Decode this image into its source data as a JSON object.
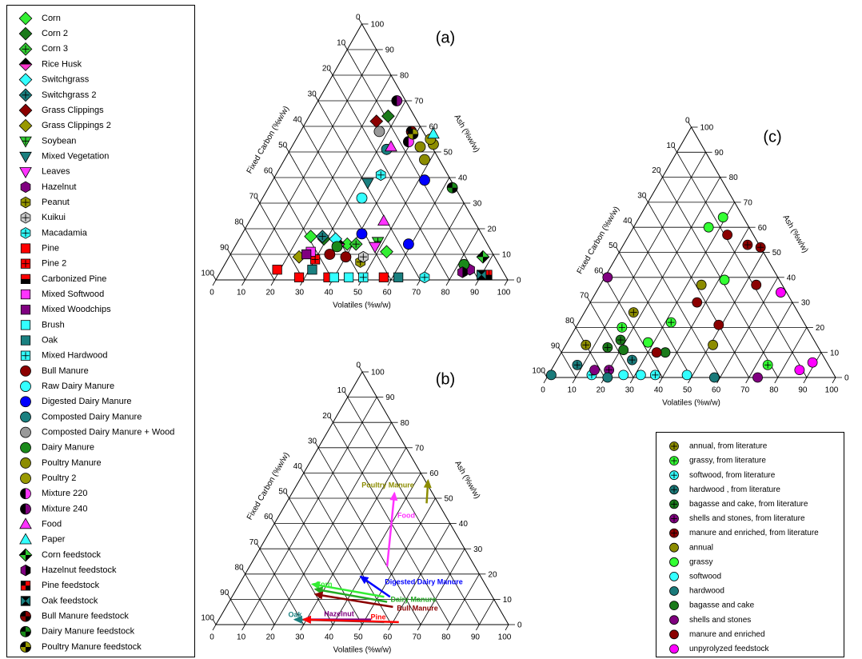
{
  "chart_data": [
    {
      "type": "ternary",
      "label": "(a)",
      "xlabel": "Volatiles (%w/w)",
      "left_label": "Fixed Carbon (%w/w)",
      "right_label": "Ash (%w/w)",
      "ticks": [
        0,
        10,
        20,
        30,
        40,
        50,
        60,
        70,
        80,
        90,
        100
      ],
      "grid": true,
      "legend": "left",
      "series": [
        {
          "name": "Corn",
          "color": "#33ee33",
          "marker": "diamond",
          "volatiles": [
            24,
            38,
            53
          ],
          "ash": [
            17,
            14,
            11
          ]
        },
        {
          "name": "Corn 2",
          "color": "#1a7a1a",
          "marker": "diamond",
          "volatiles": [
            27,
            29
          ],
          "ash": [
            64,
            16
          ]
        },
        {
          "name": "Corn 3",
          "color": "#33cc33",
          "marker": "diamond",
          "style": "plus",
          "volatiles": [
            41
          ],
          "ash": [
            14
          ]
        },
        {
          "name": "Rice Husk",
          "color": "#ff33cc",
          "color2": "#000000",
          "marker": "diamond",
          "style": "half-top",
          "volatiles": [
            35
          ],
          "ash": [
            14
          ]
        },
        {
          "name": "Switchgrass",
          "color": "#33ffff",
          "marker": "diamond",
          "volatiles": [
            33
          ],
          "ash": [
            16
          ]
        },
        {
          "name": "Switchgrass 2",
          "color": "#1a8080",
          "marker": "diamond",
          "style": "plus",
          "volatiles": [
            28
          ],
          "ash": [
            17
          ]
        },
        {
          "name": "Grass Clippings",
          "color": "#8b0000",
          "marker": "diamond",
          "volatiles": [
            24
          ],
          "ash": [
            62
          ]
        },
        {
          "name": "Grass Clippings 2",
          "color": "#999900",
          "marker": "diamond",
          "volatiles": [
            24
          ],
          "ash": [
            9
          ]
        },
        {
          "name": "Soybean",
          "color": "#33cc33",
          "marker": "tri-down",
          "style": "plus",
          "volatiles": [
            48
          ],
          "ash": [
            15
          ]
        },
        {
          "name": "Mixed Vegetation",
          "color": "#1a8080",
          "marker": "tri-down",
          "volatiles": [
            33
          ],
          "ash": [
            38
          ]
        },
        {
          "name": "Leaves",
          "color": "#ff33ff",
          "marker": "tri-down",
          "volatiles": [
            48
          ],
          "ash": [
            13
          ]
        },
        {
          "name": "Hazelnut",
          "color": "#800080",
          "marker": "hexagon",
          "volatiles": [
            85
          ],
          "ash": [
            4
          ]
        },
        {
          "name": "Peanut",
          "color": "#999900",
          "marker": "hexagon",
          "style": "plus",
          "volatiles": [
            46
          ],
          "ash": [
            7
          ]
        },
        {
          "name": "Kuikui",
          "color": "#cccccc",
          "marker": "hexagon",
          "style": "plus",
          "volatiles": [
            46
          ],
          "ash": [
            9
          ]
        },
        {
          "name": "Macadamia",
          "color": "#33ffff",
          "marker": "hexagon",
          "style": "plus",
          "volatiles": [
            36,
            71
          ],
          "ash": [
            41,
            1
          ]
        },
        {
          "name": "Pine",
          "color": "#ff0000",
          "marker": "square",
          "volatiles": [
            19,
            28,
            38,
            57
          ],
          "ash": [
            4,
            1,
            1,
            1
          ]
        },
        {
          "name": "Pine 2",
          "color": "#ff0000",
          "marker": "square",
          "style": "plus",
          "volatiles": [
            30
          ],
          "ash": [
            8
          ]
        },
        {
          "name": "Carbonized Pine",
          "color": "#ff0000",
          "color2": "#000000",
          "marker": "square",
          "style": "half-bottom",
          "volatiles": [
            92
          ],
          "ash": [
            2
          ]
        },
        {
          "name": "Mixed Softwood",
          "color": "#ff33ff",
          "marker": "square",
          "volatiles": [
            27
          ],
          "ash": [
            11
          ]
        },
        {
          "name": "Mixed Woodchips",
          "color": "#800080",
          "marker": "square",
          "volatiles": [
            26
          ],
          "ash": [
            10
          ]
        },
        {
          "name": "Brush",
          "color": "#33ffff",
          "marker": "square",
          "volatiles": [
            40,
            45
          ],
          "ash": [
            1,
            1
          ]
        },
        {
          "name": "Oak",
          "color": "#1a8080",
          "marker": "square",
          "volatiles": [
            31,
            62
          ],
          "ash": [
            4,
            1
          ]
        },
        {
          "name": "Mixed Hardwood",
          "color": "#33ffff",
          "marker": "square",
          "style": "plus",
          "volatiles": [
            50
          ],
          "ash": [
            1
          ]
        },
        {
          "name": "Bull Manure",
          "color": "#8b0000",
          "marker": "circle",
          "volatiles": [
            34,
            40
          ],
          "ash": [
            10,
            9
          ]
        },
        {
          "name": "Raw Dairy Manure",
          "color": "#33ffff",
          "marker": "circle",
          "volatiles": [
            34
          ],
          "ash": [
            32
          ]
        },
        {
          "name": "Digested Dairy Manure",
          "color": "#0000ff",
          "marker": "circle",
          "volatiles": [
            52,
            41,
            59
          ],
          "ash": [
            39,
            18,
            14
          ]
        },
        {
          "name": "Composted Dairy Manure",
          "color": "#1a8080",
          "marker": "circle",
          "volatiles": [
            33
          ],
          "ash": [
            51
          ]
        },
        {
          "name": "Composted Dairy Manure + Wood",
          "color": "#999999",
          "marker": "circle",
          "volatiles": [
            27
          ],
          "ash": [
            58
          ]
        },
        {
          "name": "Dairy Manure",
          "color": "#1a8a1a",
          "marker": "circle",
          "volatiles": [
            35,
            82
          ],
          "ash": [
            13,
            6
          ]
        },
        {
          "name": "Poultry Manure",
          "color": "#8c8c00",
          "marker": "circle",
          "volatiles": [
            44,
            48,
            48
          ],
          "ash": [
            52,
            53,
            47
          ]
        },
        {
          "name": "Poultry 2",
          "color": "#999900",
          "marker": "circle",
          "volatiles": [
            46
          ],
          "ash": [
            55
          ]
        },
        {
          "name": "Mixture 220",
          "color": "#ff33ff",
          "color2": "#000000",
          "marker": "circle",
          "style": "half-left",
          "volatiles": [
            39
          ],
          "ash": [
            54
          ]
        },
        {
          "name": "Mixture 240",
          "color": "#800080",
          "color2": "#000000",
          "marker": "circle",
          "style": "half-left",
          "volatiles": [
            27
          ],
          "ash": [
            70
          ]
        },
        {
          "name": "Food",
          "color": "#ff33ff",
          "marker": "tri-up",
          "volatiles": [
            34,
            46
          ],
          "ash": [
            52,
            23
          ]
        },
        {
          "name": "Paper",
          "color": "#33ffff",
          "marker": "tri-up",
          "volatiles": [
            46
          ],
          "ash": [
            57
          ]
        },
        {
          "name": "Corn feedstock",
          "color": "#33cc33",
          "color2": "#000000",
          "marker": "diamond",
          "style": "quarters",
          "volatiles": [
            87
          ],
          "ash": [
            9
          ]
        },
        {
          "name": "Hazelnut feedstock",
          "color": "#800080",
          "color2": "#000000",
          "marker": "hexagon",
          "style": "half-right",
          "volatiles": [
            83
          ],
          "ash": [
            3
          ]
        },
        {
          "name": "Pine feedstock",
          "color": "#ff0000",
          "color2": "#000000",
          "marker": "square",
          "style": "quarters",
          "volatiles": [
            91
          ],
          "ash": [
            2
          ]
        },
        {
          "name": "Oak feedstock",
          "color": "#1a8080",
          "color2": "#000000",
          "marker": "square",
          "style": "bowtie",
          "volatiles": [
            90
          ],
          "ash": [
            2
          ]
        },
        {
          "name": "Bull Manure feedstock",
          "color": "#8b0000",
          "color2": "#000000",
          "marker": "circle",
          "style": "quarters",
          "volatiles": [
            38
          ],
          "ash": [
            58
          ]
        },
        {
          "name": "Dairy Manure feedstock",
          "color": "#1a8a1a",
          "color2": "#000000",
          "marker": "circle",
          "style": "quarters",
          "volatiles": [
            63
          ],
          "ash": [
            36
          ]
        },
        {
          "name": "Poultry Manure feedstock",
          "color": "#999900",
          "color2": "#000000",
          "marker": "circle",
          "style": "quarters",
          "volatiles": [
            39
          ],
          "ash": [
            57
          ]
        }
      ]
    },
    {
      "type": "ternary-arrows",
      "label": "(b)",
      "xlabel": "Volatiles (%w/w)",
      "left_label": "Fixed Carbon (%w/w)",
      "right_label": "Ash (%w/w)",
      "ticks": [
        0,
        10,
        20,
        30,
        40,
        50,
        60,
        70,
        80,
        90,
        100
      ],
      "grid": true,
      "series": [
        {
          "name": "Poultry Manure",
          "color": "#8c8c00",
          "volatiles": [
            48,
            44
          ],
          "ash": [
            48,
            57
          ]
        },
        {
          "name": "Food",
          "color": "#ff33ff",
          "volatiles": [
            47,
            35
          ],
          "ash": [
            23,
            52
          ]
        },
        {
          "name": "Digested Dairy Manure",
          "color": "#0000ff",
          "volatiles": [
            54,
            40
          ],
          "ash": [
            11,
            19
          ]
        },
        {
          "name": "Corn",
          "color": "#33ee33",
          "volatiles": [
            52,
            25
          ],
          "ash": [
            11,
            16
          ]
        },
        {
          "name": "Dairy Manure",
          "color": "#22aa22",
          "volatiles": [
            54,
            27
          ],
          "ash": [
            9,
            14
          ]
        },
        {
          "name": "Bull Manure",
          "color": "#8b0000",
          "volatiles": [
            57,
            28
          ],
          "ash": [
            7,
            12
          ]
        },
        {
          "name": "Hazelnut",
          "color": "#800080",
          "volatiles": [
            52,
            29
          ],
          "ash": [
            2,
            2
          ]
        },
        {
          "name": "Oak",
          "color": "#1a8080",
          "volatiles": [
            57,
            26
          ],
          "ash": [
            1,
            2
          ]
        },
        {
          "name": "Pine",
          "color": "#ff0000",
          "volatiles": [
            62,
            29
          ],
          "ash": [
            1,
            2
          ]
        }
      ]
    },
    {
      "type": "ternary",
      "label": "(c)",
      "xlabel": "Volatiles (%w/w)",
      "left_label": "Fixed Carbon (%w/w)",
      "right_label": "Ash (%w/w)",
      "ticks": [
        0,
        10,
        20,
        30,
        40,
        50,
        60,
        70,
        80,
        90,
        100
      ],
      "grid": true,
      "legend": "bottom-right",
      "series": [
        {
          "name": "annual, from literature",
          "color": "#8c8c00",
          "marker": "circle",
          "style": "plus",
          "volatiles": [
            17,
            7
          ],
          "ash": [
            26,
            13
          ]
        },
        {
          "name": "grassy, from literature",
          "color": "#33ff33",
          "marker": "circle",
          "style": "plus",
          "volatiles": [
            32,
            16,
            74
          ],
          "ash": [
            22,
            20,
            5
          ]
        },
        {
          "name": "softwood, from literature",
          "color": "#33ffff",
          "marker": "circle",
          "style": "plus",
          "volatiles": [
            37,
            15
          ],
          "ash": [
            1,
            1
          ]
        },
        {
          "name": "hardwood , from literature",
          "color": "#1a7a7a",
          "marker": "circle",
          "style": "plus",
          "volatiles": [
            8,
            26
          ],
          "ash": [
            5,
            7
          ]
        },
        {
          "name": "bagasse and cake, from literature",
          "color": "#1a7a1a",
          "marker": "circle",
          "style": "plus",
          "volatiles": [
            18,
            15
          ],
          "ash": [
            15,
            12
          ]
        },
        {
          "name": "shells and stones, from literature",
          "color": "#800080",
          "marker": "circle",
          "style": "plus",
          "volatiles": [
            20
          ],
          "ash": [
            3
          ]
        },
        {
          "name": "manure and enriched, from literature",
          "color": "#8b0000",
          "marker": "circle",
          "style": "plus",
          "volatiles": [
            43,
            48
          ],
          "ash": [
            53,
            52
          ]
        },
        {
          "name": "annual",
          "color": "#8c8c00",
          "marker": "circle",
          "volatiles": [
            35,
            51
          ],
          "ash": [
            37,
            13
          ]
        },
        {
          "name": "grassy",
          "color": "#33ff33",
          "marker": "circle",
          "volatiles": [
            29,
            26,
            42,
            28
          ],
          "ash": [
            64,
            60,
            39,
            14
          ]
        },
        {
          "name": "softwood",
          "color": "#33ffff",
          "marker": "circle",
          "volatiles": [
            32,
            48,
            26
          ],
          "ash": [
            1,
            1,
            1
          ]
        },
        {
          "name": "hardwood",
          "color": "#1a7a7a",
          "marker": "circle",
          "volatiles": [
            1,
            21,
            58
          ],
          "ash": [
            1,
            0,
            0
          ]
        },
        {
          "name": "bagasse and cake",
          "color": "#1a7a1a",
          "marker": "circle",
          "volatiles": [
            21,
            36
          ],
          "ash": [
            11,
            10
          ]
        },
        {
          "name": "shells and stones",
          "color": "#800080",
          "marker": "circle",
          "volatiles": [
            1,
            15,
            73
          ],
          "ash": [
            40,
            3,
            0
          ]
        },
        {
          "name": "manure and enriched",
          "color": "#8b0000",
          "marker": "circle",
          "volatiles": [
            34,
            54,
            37,
            49,
            33
          ],
          "ash": [
            57,
            37,
            30,
            21,
            10
          ]
        },
        {
          "name": "unpyrolyzed feedstock",
          "color": "#ff00ff",
          "marker": "circle",
          "volatiles": [
            64,
            89,
            86
          ],
          "ash": [
            34,
            6,
            3
          ]
        }
      ]
    }
  ]
}
